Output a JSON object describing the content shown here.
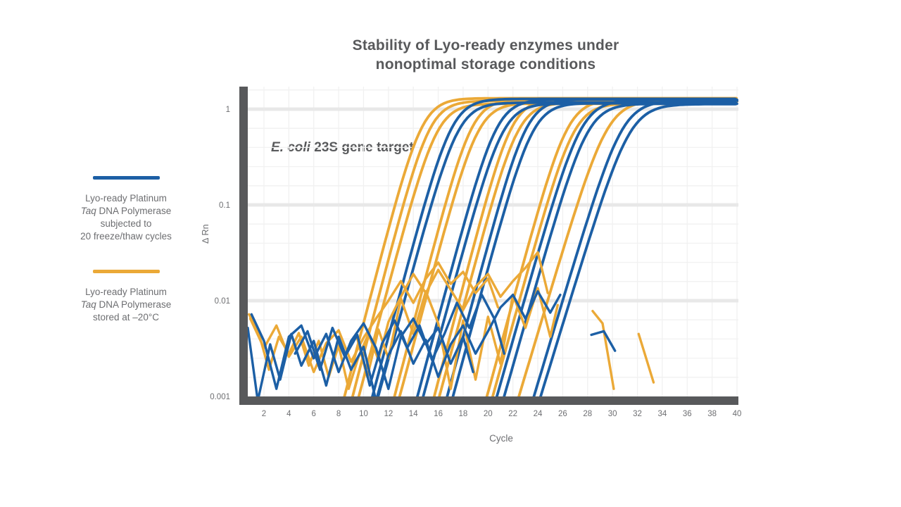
{
  "title": {
    "line1": "Stability of Lyo-ready enzymes under",
    "line2": "nonoptimal storage conditions"
  },
  "legend": {
    "entries": [
      {
        "color_key": "blue",
        "lines": [
          "Lyo-ready Platinum",
          "*Taq* DNA Polymerase",
          "subjected to",
          "20 freeze/thaw cycles"
        ]
      },
      {
        "color_key": "yellow",
        "lines": [
          "Lyo-ready Platinum",
          "*Taq* DNA Polymerase",
          "stored at –20°C"
        ]
      }
    ]
  },
  "chart_data": {
    "type": "line",
    "title": "Stability of Lyo-ready enzymes under nonoptimal storage conditions",
    "annotation": "*E. coli* 23S gene target",
    "xlabel": "Cycle",
    "ylabel": "∆ Rn",
    "y_scale": "log",
    "xlim": [
      0.7,
      40.1
    ],
    "ylim": [
      0.001,
      1.7
    ],
    "grid": "on",
    "legend_position": "left",
    "x_ticks": [
      2,
      4,
      6,
      8,
      10,
      12,
      14,
      16,
      18,
      20,
      22,
      24,
      26,
      28,
      30,
      32,
      34,
      36,
      38,
      40
    ],
    "y_ticks": [
      {
        "label": "1",
        "value": 1
      },
      {
        "label": "0.1",
        "value": 0.1
      },
      {
        "label": "0.01",
        "value": 0.01
      },
      {
        "label": "0.001",
        "value": 0.001
      }
    ],
    "colors": {
      "blue": "#1C5FA5",
      "yellow": "#EBA937",
      "axis": "#58595B",
      "grid_major": "#E8E8E8",
      "grid_minor": "#F1F1F1",
      "tick_text": "#6D6E71"
    },
    "series_meta": [
      {
        "name": "Lyo-ready Platinum Taq DNA Polymerase subjected to 20 freeze/thaw cycles",
        "color": "blue"
      },
      {
        "name": "Lyo-ready Platinum Taq DNA Polymerase stored at −20°C",
        "color": "yellow"
      }
    ],
    "amplification_curves": [
      {
        "color": "yellow",
        "ct": 12.6,
        "midpoint": 14.7,
        "steepness": 1.15,
        "plateau": 1.3
      },
      {
        "color": "yellow",
        "ct": 13.2,
        "midpoint": 15.3,
        "steepness": 1.15,
        "plateau": 1.22
      },
      {
        "color": "yellow",
        "ct": 13.8,
        "midpoint": 15.9,
        "steepness": 1.12,
        "plateau": 1.14
      },
      {
        "color": "yellow",
        "ct": 16.6,
        "midpoint": 18.7,
        "steepness": 1.15,
        "plateau": 1.27
      },
      {
        "color": "yellow",
        "ct": 17.1,
        "midpoint": 19.2,
        "steepness": 1.12,
        "plateau": 1.16
      },
      {
        "color": "yellow",
        "ct": 19.8,
        "midpoint": 21.9,
        "steepness": 1.15,
        "plateau": 1.28
      },
      {
        "color": "yellow",
        "ct": 20.3,
        "midpoint": 22.4,
        "steepness": 1.12,
        "plateau": 1.17
      },
      {
        "color": "yellow",
        "ct": 24.3,
        "midpoint": 26.4,
        "steepness": 1.1,
        "plateau": 1.26
      },
      {
        "color": "yellow",
        "ct": 24.8,
        "midpoint": 26.9,
        "steepness": 1.08,
        "plateau": 1.15
      },
      {
        "color": "yellow",
        "ct": 27.5,
        "midpoint": 29.6,
        "steepness": 1.0,
        "plateau": 1.24
      },
      {
        "color": "blue",
        "ct": 15.0,
        "midpoint": 17.1,
        "steepness": 1.12,
        "plateau": 1.28
      },
      {
        "color": "blue",
        "ct": 15.5,
        "midpoint": 17.6,
        "steepness": 1.1,
        "plateau": 1.17
      },
      {
        "color": "blue",
        "ct": 18.6,
        "midpoint": 20.7,
        "steepness": 1.12,
        "plateau": 1.26
      },
      {
        "color": "blue",
        "ct": 19.1,
        "midpoint": 21.2,
        "steepness": 1.1,
        "plateau": 1.15
      },
      {
        "color": "blue",
        "ct": 21.0,
        "midpoint": 23.1,
        "steepness": 1.12,
        "plateau": 1.27
      },
      {
        "color": "blue",
        "ct": 21.5,
        "midpoint": 23.6,
        "steepness": 1.1,
        "plateau": 1.16
      },
      {
        "color": "blue",
        "ct": 25.4,
        "midpoint": 27.5,
        "steepness": 1.05,
        "plateau": 1.25
      },
      {
        "color": "blue",
        "ct": 25.9,
        "midpoint": 28.0,
        "steepness": 1.05,
        "plateau": 1.14
      },
      {
        "color": "blue",
        "ct": 28.7,
        "midpoint": 30.8,
        "steepness": 1.0,
        "plateau": 1.23
      },
      {
        "color": "blue",
        "ct": 29.3,
        "midpoint": 31.4,
        "steepness": 0.98,
        "plateau": 1.13
      }
    ],
    "noise_traces": [
      {
        "color": "yellow",
        "points": [
          [
            0.8,
            0.0072
          ],
          [
            1.6,
            0.0045
          ],
          [
            2.4,
            0.0019
          ],
          [
            3.2,
            0.0042
          ],
          [
            4,
            0.0028
          ],
          [
            4.8,
            0.0046
          ],
          [
            5.6,
            0.0021
          ],
          [
            6.4,
            0.0038
          ],
          [
            7.2,
            0.0016
          ],
          [
            8,
            0.0034
          ],
          [
            8.8,
            0.0012
          ],
          [
            9.6,
            0.0026
          ],
          [
            10.4,
            0.0045
          ],
          [
            11.2,
            0.0024
          ],
          [
            12,
            0.006
          ],
          [
            13,
            0.011
          ],
          [
            14,
            0.019
          ],
          [
            15,
            0.012
          ],
          [
            16,
            0.021
          ],
          [
            17,
            0.013
          ],
          [
            18,
            0.008
          ],
          [
            19,
            0.014
          ],
          [
            20,
            0.019
          ],
          [
            21,
            0.011
          ],
          [
            22,
            0.016
          ],
          [
            23,
            0.022
          ],
          [
            24,
            0.032
          ],
          [
            24.8,
            0.012
          ]
        ]
      },
      {
        "color": "yellow",
        "points": [
          [
            0.9,
            0.0065
          ],
          [
            2,
            0.0032
          ],
          [
            3,
            0.0055
          ],
          [
            4,
            0.0026
          ],
          [
            5,
            0.0042
          ],
          [
            6,
            0.0018
          ],
          [
            7,
            0.0036
          ],
          [
            8,
            0.0049
          ],
          [
            9,
            0.0023
          ],
          [
            10,
            0.0041
          ],
          [
            11,
            0.0065
          ],
          [
            12,
            0.01
          ],
          [
            13,
            0.016
          ],
          [
            14,
            0.0095
          ],
          [
            15,
            0.017
          ],
          [
            16,
            0.025
          ],
          [
            17,
            0.015
          ],
          [
            18,
            0.02
          ],
          [
            19,
            0.012
          ],
          [
            20,
            0.017
          ],
          [
            20.8,
            0.0085
          ]
        ]
      },
      {
        "color": "yellow",
        "points": [
          [
            9.5,
            0.004
          ],
          [
            10.3,
            0.0016
          ],
          [
            11.2,
            0.005
          ],
          [
            12,
            0.0025
          ],
          [
            13,
            0.0105
          ],
          [
            14,
            0.0045
          ],
          [
            15,
            0.0125
          ],
          [
            16,
            0.0058
          ],
          [
            17,
            0.0012
          ],
          [
            18,
            0.0062
          ],
          [
            19,
            0.0015
          ],
          [
            20,
            0.0068
          ],
          [
            21,
            0.0022
          ],
          [
            22,
            0.0115
          ],
          [
            23,
            0.0052
          ],
          [
            24,
            0.0135
          ],
          [
            25,
            0.0042
          ],
          [
            25.6,
            0.009
          ]
        ]
      },
      {
        "color": "blue",
        "points": [
          [
            0.7,
            0.0052
          ],
          [
            1.5,
            0.0009
          ],
          [
            2.5,
            0.0035
          ],
          [
            3.3,
            0.0015
          ],
          [
            4.2,
            0.0045
          ],
          [
            5,
            0.0021
          ],
          [
            6,
            0.0038
          ],
          [
            7,
            0.0013
          ],
          [
            8,
            0.0042
          ],
          [
            9,
            0.0019
          ],
          [
            10,
            0.0033
          ],
          [
            11,
            0.0009
          ],
          [
            12,
            0.0027
          ],
          [
            13,
            0.0048
          ],
          [
            14,
            0.0022
          ],
          [
            15,
            0.0039
          ],
          [
            16,
            0.0016
          ],
          [
            17,
            0.0035
          ],
          [
            18,
            0.0055
          ],
          [
            19,
            0.0028
          ],
          [
            20,
            0.0048
          ],
          [
            21,
            0.0085
          ],
          [
            22,
            0.0115
          ],
          [
            23,
            0.0065
          ],
          [
            24,
            0.0125
          ],
          [
            25,
            0.0075
          ],
          [
            25.8,
            0.0115
          ]
        ]
      },
      {
        "color": "blue",
        "points": [
          [
            1,
            0.0072
          ],
          [
            2,
            0.0038
          ],
          [
            3,
            0.0012
          ],
          [
            4,
            0.0042
          ],
          [
            5,
            0.0055
          ],
          [
            6,
            0.0025
          ],
          [
            7,
            0.0045
          ],
          [
            8,
            0.0018
          ],
          [
            9,
            0.0038
          ],
          [
            10,
            0.0058
          ],
          [
            11,
            0.0032
          ],
          [
            12,
            0.0012
          ],
          [
            13,
            0.0042
          ],
          [
            14,
            0.0065
          ],
          [
            15,
            0.0035
          ],
          [
            16,
            0.0052
          ],
          [
            17,
            0.0022
          ],
          [
            18,
            0.0042
          ],
          [
            18.8,
            0.0018
          ]
        ]
      },
      {
        "color": "blue",
        "points": [
          [
            4.5,
            0.0028
          ],
          [
            5.5,
            0.0048
          ],
          [
            6.5,
            0.0019
          ],
          [
            7.5,
            0.0052
          ],
          [
            8.5,
            0.0026
          ],
          [
            9.5,
            0.0044
          ],
          [
            10.5,
            0.0013
          ],
          [
            11.5,
            0.0036
          ],
          [
            12.5,
            0.0062
          ],
          [
            13.5,
            0.0032
          ],
          [
            14.5,
            0.0055
          ],
          [
            15.5,
            0.0024
          ],
          [
            16.5,
            0.0045
          ],
          [
            17.5,
            0.0095
          ],
          [
            18.5,
            0.0052
          ],
          [
            19.5,
            0.0115
          ],
          [
            20.5,
            0.0065
          ],
          [
            21.3,
            0.0028
          ]
        ]
      },
      {
        "color": "yellow",
        "points": [
          [
            28.4,
            0.0078
          ],
          [
            29.2,
            0.0058
          ],
          [
            30.1,
            0.0012
          ]
        ]
      },
      {
        "color": "blue",
        "points": [
          [
            28.3,
            0.0044
          ],
          [
            29.3,
            0.0048
          ],
          [
            30.2,
            0.003
          ]
        ]
      },
      {
        "color": "yellow",
        "points": [
          [
            32.1,
            0.0045
          ],
          [
            33.3,
            0.0014
          ]
        ]
      }
    ]
  }
}
